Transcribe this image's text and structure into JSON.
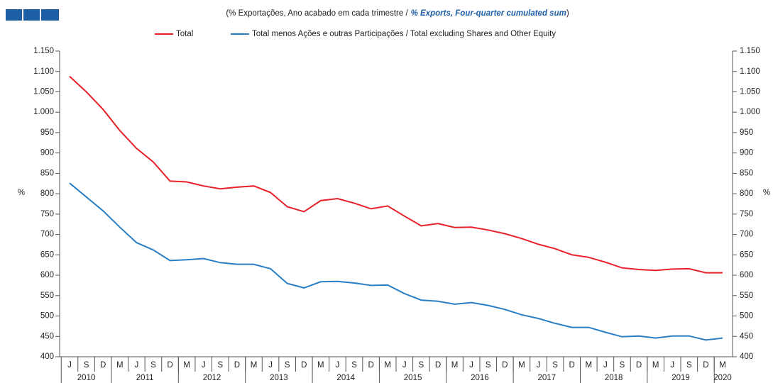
{
  "chart_data": {
    "type": "line",
    "title_parts": [
      "(% Exportações, Ano acabado em cada trimestre /",
      "% Exports, Four-quarter cumulated sum",
      ")"
    ],
    "y_label": "%",
    "categories": [
      "J",
      "S",
      "D",
      "M",
      "J",
      "S",
      "D",
      "M",
      "J",
      "S",
      "D",
      "M",
      "J",
      "S",
      "D",
      "M",
      "J",
      "S",
      "D",
      "M",
      "J",
      "S",
      "D",
      "M",
      "J",
      "S",
      "D",
      "M",
      "J",
      "S",
      "D",
      "M",
      "J",
      "S",
      "D",
      "M",
      "J",
      "S",
      "D",
      "M"
    ],
    "years": [
      "2010",
      "2011",
      "2012",
      "2013",
      "2014",
      "2015",
      "2016",
      "2017",
      "2018",
      "2019",
      "2020"
    ],
    "series": [
      {
        "name": "Total",
        "color": "#e8202a",
        "values": [
          1088,
          1050,
          1007,
          955,
          911,
          878,
          831,
          829,
          819,
          812,
          816,
          819,
          803,
          768,
          756,
          783,
          788,
          777,
          763,
          770,
          745,
          721,
          727,
          717,
          718,
          711,
          702,
          690,
          676,
          665,
          650,
          644,
          632,
          618,
          614,
          612,
          615,
          616,
          606,
          606
        ]
      },
      {
        "name": "Total menos Ações e outras Participações / Total excluding Shares and Other Equity",
        "color": "#2a7fc4",
        "values": [
          826,
          792,
          758,
          718,
          680,
          662,
          636,
          638,
          641,
          631,
          627,
          627,
          616,
          580,
          569,
          584,
          585,
          581,
          575,
          576,
          555,
          539,
          536,
          529,
          533,
          526,
          516,
          503,
          494,
          482,
          472,
          472,
          460,
          449,
          451,
          446,
          451,
          451,
          441,
          446
        ]
      }
    ],
    "ylim": [
      400,
      1150
    ],
    "yticks": [
      400,
      450,
      500,
      550,
      600,
      650,
      700,
      750,
      800,
      850,
      900,
      950,
      {
        "value": 1000,
        "label": "1.000"
      },
      {
        "value": 1050,
        "label": "1.050"
      },
      {
        "value": 1100,
        "label": "1.100"
      },
      {
        "value": 1150,
        "label": "1.150"
      }
    ],
    "grid": false
  }
}
